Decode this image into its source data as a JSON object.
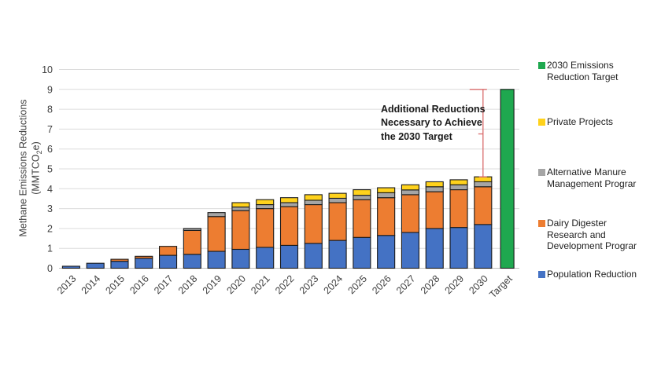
{
  "chart_data": {
    "type": "bar",
    "subtype": "stacked-column-with-target",
    "title": "",
    "ylabel": {
      "line1": "Methane Emissions Reductions",
      "line2_pre": "(MMTCO",
      "line2_sub": "2",
      "line2_post": "e)"
    },
    "ylim": [
      0,
      10
    ],
    "ytick_step": 1,
    "grid": true,
    "legend_position": "right",
    "categories": [
      "2013",
      "2014",
      "2015",
      "2016",
      "2017",
      "2018",
      "2019",
      "2020",
      "2021",
      "2022",
      "2023",
      "2024",
      "2025",
      "2026",
      "2027",
      "2028",
      "2029",
      "2030",
      "Target"
    ],
    "series": [
      {
        "name": "Population Reduction",
        "color": "#4472C4",
        "values": [
          0.1,
          0.25,
          0.35,
          0.5,
          0.65,
          0.7,
          0.85,
          0.95,
          1.05,
          1.15,
          1.25,
          1.4,
          1.55,
          1.65,
          1.8,
          2.0,
          2.05,
          2.2,
          0
        ]
      },
      {
        "name": "Dairy Digester Research and Development Prograr",
        "color": "#ED7D31",
        "values": [
          0,
          0,
          0.1,
          0.1,
          0.45,
          1.2,
          1.75,
          1.95,
          1.95,
          1.95,
          1.95,
          1.9,
          1.9,
          1.9,
          1.9,
          1.85,
          1.9,
          1.9,
          0
        ]
      },
      {
        "name": "Alternative Manure Management Prograr",
        "color": "#A5A5A5",
        "values": [
          0,
          0,
          0,
          0,
          0,
          0.1,
          0.2,
          0.18,
          0.2,
          0.2,
          0.22,
          0.22,
          0.22,
          0.25,
          0.24,
          0.25,
          0.25,
          0.25,
          0
        ]
      },
      {
        "name": "Private Projects",
        "color": "#FFD21C",
        "values": [
          0,
          0,
          0,
          0,
          0,
          0,
          0,
          0.22,
          0.25,
          0.25,
          0.28,
          0.25,
          0.28,
          0.25,
          0.26,
          0.25,
          0.25,
          0.25,
          0
        ]
      },
      {
        "name": "2030 Emissions Reduction Target",
        "color": "#1FA84F",
        "values": [
          0,
          0,
          0,
          0,
          0,
          0,
          0,
          0,
          0,
          0,
          0,
          0,
          0,
          0,
          0,
          0,
          0,
          0,
          9
        ]
      }
    ],
    "annotation": {
      "lines": [
        "Additional Reductions",
        "Necessary to Achieve",
        "the 2030 Target"
      ],
      "bracket": {
        "category": "2030",
        "from": 4.6,
        "to": 9.0,
        "color": "#D96C6C"
      }
    },
    "legend": {
      "items": [
        {
          "label": "2030 Emissions\nReduction Target",
          "color": "#1FA84F"
        },
        {
          "label": "Private Projects",
          "color": "#FFD21C"
        },
        {
          "label": "Alternative Manure\nManagement Prograr",
          "color": "#A5A5A5"
        },
        {
          "label": "Dairy Digester\nResearch and\nDevelopment Prograr",
          "color": "#ED7D31"
        },
        {
          "label": "Population Reduction",
          "color": "#4472C4"
        }
      ]
    },
    "colors": {
      "gridline": "#DCDCDC",
      "axis_line": "#BFBFBF",
      "tick_text": "#404040",
      "bar_border": "#1A1A1A"
    }
  }
}
